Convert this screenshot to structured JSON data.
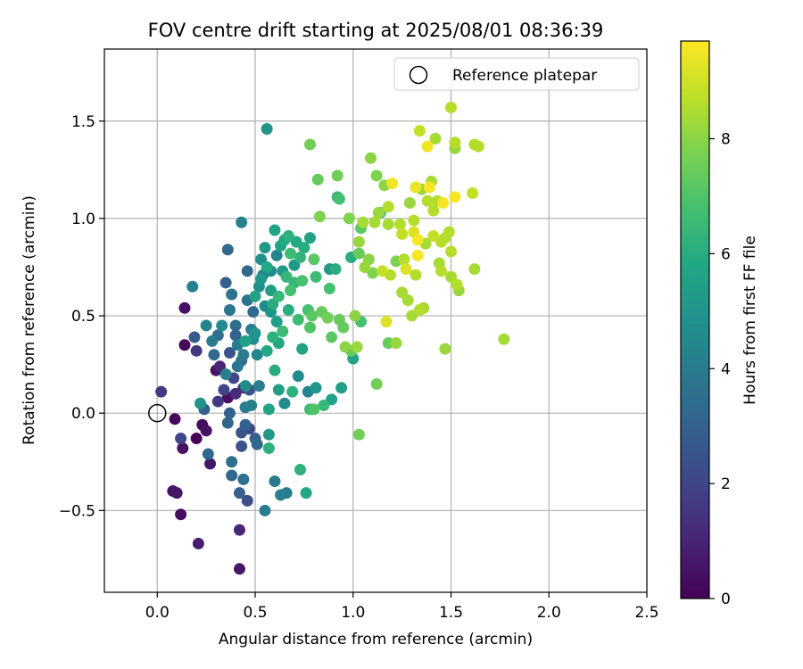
{
  "chart_data": {
    "type": "scatter",
    "title": "FOV centre drift starting at 2025/08/01 08:36:39",
    "xlabel": "Angular distance from reference (arcmin)",
    "ylabel": "Rotation from reference (arcmin)",
    "xlim": [
      -0.27,
      2.5
    ],
    "ylim": [
      -0.92,
      1.87
    ],
    "xticks": [
      0.0,
      0.5,
      1.0,
      1.5,
      2.0,
      2.5
    ],
    "xtick_labels": [
      "0.0",
      "0.5",
      "1.0",
      "1.5",
      "2.0",
      "2.5"
    ],
    "yticks": [
      -0.5,
      0.0,
      0.5,
      1.0,
      1.5
    ],
    "ytick_labels": [
      "−0.5",
      "0.0",
      "0.5",
      "1.0",
      "1.5"
    ],
    "grid": true,
    "legend": {
      "placement": "top-right",
      "entries": [
        "Reference platepar"
      ]
    },
    "reference_point": {
      "x": 0.0,
      "y": 0.0
    },
    "colorbar": {
      "label": "Hours from first FF file",
      "colormap": "viridis",
      "range": [
        0,
        9.7
      ],
      "ticks": [
        0,
        2,
        4,
        6,
        8
      ],
      "tick_labels": [
        "0",
        "2",
        "4",
        "6",
        "8"
      ]
    },
    "points": [
      [
        0.02,
        0.11,
        1.6
      ],
      [
        0.08,
        -0.4,
        0.5
      ],
      [
        0.1,
        -0.41,
        0.6
      ],
      [
        0.12,
        -0.52,
        0.3
      ],
      [
        0.09,
        -0.03,
        0.2
      ],
      [
        0.13,
        -0.18,
        0.5
      ],
      [
        0.12,
        -0.13,
        2.0
      ],
      [
        0.14,
        0.35,
        0.2
      ],
      [
        0.14,
        0.54,
        0.4
      ],
      [
        0.18,
        0.65,
        4.2
      ],
      [
        0.21,
        -0.67,
        0.8
      ],
      [
        0.2,
        -0.13,
        0.1
      ],
      [
        0.23,
        -0.06,
        0.3
      ],
      [
        0.25,
        -0.09,
        0.5
      ],
      [
        0.27,
        -0.26,
        0.6
      ],
      [
        0.2,
        0.32,
        1.6
      ],
      [
        0.19,
        0.39,
        2.8
      ],
      [
        0.22,
        0.05,
        5.0
      ],
      [
        0.24,
        0.02,
        3.0
      ],
      [
        0.26,
        -0.21,
        3.3
      ],
      [
        0.25,
        0.45,
        4.3
      ],
      [
        0.28,
        0.37,
        4.0
      ],
      [
        0.29,
        0.3,
        3.3
      ],
      [
        0.3,
        0.22,
        0.5
      ],
      [
        0.32,
        0.24,
        1.0
      ],
      [
        0.33,
        0.45,
        4.6
      ],
      [
        0.31,
        0.06,
        1.6
      ],
      [
        0.31,
        0.4,
        3.5
      ],
      [
        0.34,
        0.12,
        2.0
      ],
      [
        0.35,
        0.2,
        4.2
      ],
      [
        0.36,
        -0.05,
        3.2
      ],
      [
        0.36,
        0.08,
        0.4
      ],
      [
        0.37,
        0.0,
        3.0
      ],
      [
        0.37,
        0.31,
        2.5
      ],
      [
        0.35,
        0.67,
        3.0
      ],
      [
        0.36,
        0.84,
        3.3
      ],
      [
        0.37,
        0.53,
        3.8
      ],
      [
        0.38,
        0.61,
        3.8
      ],
      [
        0.38,
        -0.25,
        3.5
      ],
      [
        0.38,
        -0.32,
        3.3
      ],
      [
        0.39,
        0.18,
        2.0
      ],
      [
        0.4,
        0.1,
        1.2
      ],
      [
        0.4,
        0.4,
        3.0
      ],
      [
        0.4,
        0.45,
        3.4
      ],
      [
        0.41,
        0.24,
        3.8
      ],
      [
        0.41,
        0.35,
        4.0
      ],
      [
        0.42,
        -0.6,
        1.1
      ],
      [
        0.42,
        -0.8,
        0.6
      ],
      [
        0.42,
        -0.41,
        3.0
      ],
      [
        0.43,
        -0.1,
        2.5
      ],
      [
        0.43,
        -0.17,
        2.5
      ],
      [
        0.43,
        0.27,
        3.5
      ],
      [
        0.43,
        0.98,
        4.3
      ],
      [
        0.44,
        0.3,
        4.0
      ],
      [
        0.45,
        0.37,
        5.5
      ],
      [
        0.44,
        -0.34,
        3.6
      ],
      [
        0.44,
        0.13,
        1.1
      ],
      [
        0.45,
        0.03,
        4.1
      ],
      [
        0.45,
        -0.06,
        3.0
      ],
      [
        0.45,
        0.14,
        4.6
      ],
      [
        0.46,
        -0.45,
        2.3
      ],
      [
        0.46,
        0.58,
        3.8
      ],
      [
        0.46,
        0.73,
        3.3
      ],
      [
        0.47,
        -0.08,
        2.0
      ],
      [
        0.47,
        0.12,
        2.5
      ],
      [
        0.48,
        0.04,
        4.2
      ],
      [
        0.48,
        0.43,
        4.2
      ],
      [
        0.49,
        0.38,
        4.7
      ],
      [
        0.49,
        0.52,
        3.4
      ],
      [
        0.5,
        -0.13,
        3.0
      ],
      [
        0.5,
        0.41,
        5.0
      ],
      [
        0.5,
        0.6,
        5.6
      ],
      [
        0.51,
        -0.16,
        3.3
      ],
      [
        0.51,
        0.3,
        4.4
      ],
      [
        0.52,
        0.14,
        4.0
      ],
      [
        0.52,
        0.65,
        4.8
      ],
      [
        0.53,
        0.69,
        5.2
      ],
      [
        0.53,
        0.79,
        4.8
      ],
      [
        0.54,
        0.71,
        4.4
      ],
      [
        0.55,
        0.55,
        4.6
      ],
      [
        0.55,
        0.85,
        5.2
      ],
      [
        0.55,
        -0.5,
        4.0
      ],
      [
        0.56,
        0.32,
        5.8
      ],
      [
        0.56,
        0.75,
        5.8
      ],
      [
        0.56,
        1.46,
        5.0
      ],
      [
        0.57,
        -0.11,
        5.2
      ],
      [
        0.57,
        0.02,
        5.6
      ],
      [
        0.57,
        -0.18,
        6.2
      ],
      [
        0.58,
        0.52,
        5.0
      ],
      [
        0.58,
        0.63,
        5.4
      ],
      [
        0.58,
        0.73,
        4.6
      ],
      [
        0.59,
        0.39,
        6.2
      ],
      [
        0.59,
        0.56,
        6.0
      ],
      [
        0.6,
        -0.35,
        4.0
      ],
      [
        0.6,
        0.22,
        6.0
      ],
      [
        0.6,
        0.94,
        5.6
      ],
      [
        0.61,
        0.47,
        5.4
      ],
      [
        0.61,
        0.81,
        4.4
      ],
      [
        0.62,
        0.12,
        5.4
      ],
      [
        0.62,
        0.36,
        5.8
      ],
      [
        0.62,
        0.6,
        6.4
      ],
      [
        0.63,
        0.86,
        5.6
      ],
      [
        0.63,
        -0.42,
        4.2
      ],
      [
        0.64,
        0.73,
        5.2
      ],
      [
        0.64,
        0.42,
        6.6
      ],
      [
        0.65,
        0.89,
        5.8
      ],
      [
        0.65,
        0.05,
        4.6
      ],
      [
        0.66,
        -0.41,
        4.0
      ],
      [
        0.66,
        0.7,
        6.4
      ],
      [
        0.67,
        0.53,
        6.0
      ],
      [
        0.67,
        0.91,
        6.2
      ],
      [
        0.68,
        0.82,
        6.6
      ],
      [
        0.68,
        0.63,
        6.8
      ],
      [
        0.69,
        0.11,
        6.2
      ],
      [
        0.7,
        0.76,
        5.2
      ],
      [
        0.7,
        0.67,
        6.4
      ],
      [
        0.71,
        0.88,
        5.8
      ],
      [
        0.72,
        0.48,
        6.6
      ],
      [
        0.72,
        0.19,
        4.6
      ],
      [
        0.73,
        -0.29,
        6.2
      ],
      [
        0.73,
        0.8,
        6.3
      ],
      [
        0.74,
        0.68,
        6.8
      ],
      [
        0.74,
        0.33,
        5.6
      ],
      [
        0.75,
        0.85,
        6.0
      ],
      [
        0.76,
        -0.41,
        5.8
      ],
      [
        0.77,
        0.11,
        4.4
      ],
      [
        0.77,
        0.53,
        6.8
      ],
      [
        0.78,
        0.02,
        6.6
      ],
      [
        0.78,
        0.44,
        7.0
      ],
      [
        0.78,
        0.9,
        5.6
      ],
      [
        0.78,
        1.38,
        7.6
      ],
      [
        0.79,
        0.5,
        7.2
      ],
      [
        0.8,
        0.02,
        7.0
      ],
      [
        0.8,
        0.79,
        7.2
      ],
      [
        0.81,
        0.7,
        6.6
      ],
      [
        0.81,
        0.13,
        5.0
      ],
      [
        0.82,
        1.2,
        7.4
      ],
      [
        0.83,
        1.01,
        7.8
      ],
      [
        0.84,
        0.52,
        7.4
      ],
      [
        0.85,
        0.04,
        6.4
      ],
      [
        0.87,
        0.49,
        7.6
      ],
      [
        0.88,
        0.64,
        6.8
      ],
      [
        0.88,
        0.74,
        5.2
      ],
      [
        0.89,
        0.07,
        5.6
      ],
      [
        0.89,
        0.39,
        7.2
      ],
      [
        0.91,
        0.74,
        6.0
      ],
      [
        0.92,
        1.11,
        6.4
      ],
      [
        0.92,
        1.22,
        7.6
      ],
      [
        0.93,
        1.1,
        6.8
      ],
      [
        0.93,
        0.48,
        7.4
      ],
      [
        0.94,
        0.13,
        5.4
      ],
      [
        0.95,
        0.44,
        7.4
      ],
      [
        0.96,
        0.34,
        8.0
      ],
      [
        0.98,
        1.0,
        7.8
      ],
      [
        0.99,
        0.8,
        6.0
      ],
      [
        0.99,
        0.32,
        7.4
      ],
      [
        1.0,
        0.28,
        5.6
      ],
      [
        1.01,
        0.5,
        8.0
      ],
      [
        1.02,
        0.34,
        8.2
      ],
      [
        1.03,
        -0.11,
        7.6
      ],
      [
        1.03,
        0.82,
        7.4
      ],
      [
        1.03,
        0.88,
        8.2
      ],
      [
        1.04,
        0.95,
        7.2
      ],
      [
        1.04,
        0.47,
        6.8
      ],
      [
        1.05,
        0.98,
        8.4
      ],
      [
        1.06,
        0.75,
        8.2
      ],
      [
        1.08,
        0.79,
        8.0
      ],
      [
        1.09,
        1.31,
        8.0
      ],
      [
        1.1,
        0.72,
        7.8
      ],
      [
        1.11,
        0.98,
        8.4
      ],
      [
        1.12,
        0.15,
        7.6
      ],
      [
        1.12,
        1.22,
        7.8
      ],
      [
        1.13,
        1.03,
        8.2
      ],
      [
        1.14,
        1.03,
        7.0
      ],
      [
        1.15,
        0.73,
        8.8
      ],
      [
        1.16,
        1.17,
        8.0
      ],
      [
        1.17,
        0.47,
        9.2
      ],
      [
        1.18,
        0.36,
        7.4
      ],
      [
        1.18,
        0.97,
        8.4
      ],
      [
        1.18,
        1.06,
        8.6
      ],
      [
        1.19,
        0.71,
        8.6
      ],
      [
        1.2,
        1.18,
        9.5
      ],
      [
        1.22,
        0.36,
        8.2
      ],
      [
        1.22,
        0.78,
        7.8
      ],
      [
        1.24,
        0.97,
        8.6
      ],
      [
        1.25,
        0.92,
        8.8
      ],
      [
        1.25,
        0.62,
        8.4
      ],
      [
        1.26,
        0.79,
        8.6
      ],
      [
        1.27,
        0.74,
        9.2
      ],
      [
        1.28,
        0.58,
        8.4
      ],
      [
        1.29,
        1.08,
        8.2
      ],
      [
        1.3,
        0.5,
        8.4
      ],
      [
        1.31,
        0.99,
        8.6
      ],
      [
        1.31,
        0.93,
        9.2
      ],
      [
        1.32,
        0.71,
        8.6
      ],
      [
        1.32,
        1.16,
        9.4
      ],
      [
        1.33,
        0.89,
        9.6
      ],
      [
        1.33,
        0.81,
        9.6
      ],
      [
        1.34,
        0.53,
        8.6
      ],
      [
        1.34,
        1.45,
        8.8
      ],
      [
        1.35,
        1.15,
        8.2
      ],
      [
        1.36,
        0.54,
        8.4
      ],
      [
        1.37,
        0.87,
        8.4
      ],
      [
        1.38,
        1.09,
        8.6
      ],
      [
        1.38,
        1.37,
        9.5
      ],
      [
        1.39,
        1.16,
        9.6
      ],
      [
        1.4,
        1.19,
        8.4
      ],
      [
        1.41,
        0.91,
        8.8
      ],
      [
        1.41,
        1.04,
        8.6
      ],
      [
        1.42,
        1.41,
        8.4
      ],
      [
        1.43,
        1.09,
        8.6
      ],
      [
        1.44,
        0.77,
        8.4
      ],
      [
        1.45,
        0.88,
        8.6
      ],
      [
        1.45,
        0.73,
        8.6
      ],
      [
        1.46,
        1.08,
        9.6
      ],
      [
        1.47,
        0.33,
        8.2
      ],
      [
        1.47,
        0.9,
        8.6
      ],
      [
        1.49,
        0.93,
        8.6
      ],
      [
        1.5,
        0.7,
        8.4
      ],
      [
        1.5,
        0.83,
        8.6
      ],
      [
        1.5,
        1.57,
        8.6
      ],
      [
        1.52,
        1.39,
        8.6
      ],
      [
        1.52,
        1.36,
        8.2
      ],
      [
        1.52,
        1.11,
        9.6
      ],
      [
        1.53,
        0.66,
        8.6
      ],
      [
        1.54,
        0.63,
        8.2
      ],
      [
        1.61,
        1.13,
        8.8
      ],
      [
        1.62,
        1.38,
        8.6
      ],
      [
        1.62,
        0.74,
        8.4
      ],
      [
        1.64,
        1.37,
        8.6
      ],
      [
        1.77,
        0.38,
        8.4
      ]
    ]
  }
}
